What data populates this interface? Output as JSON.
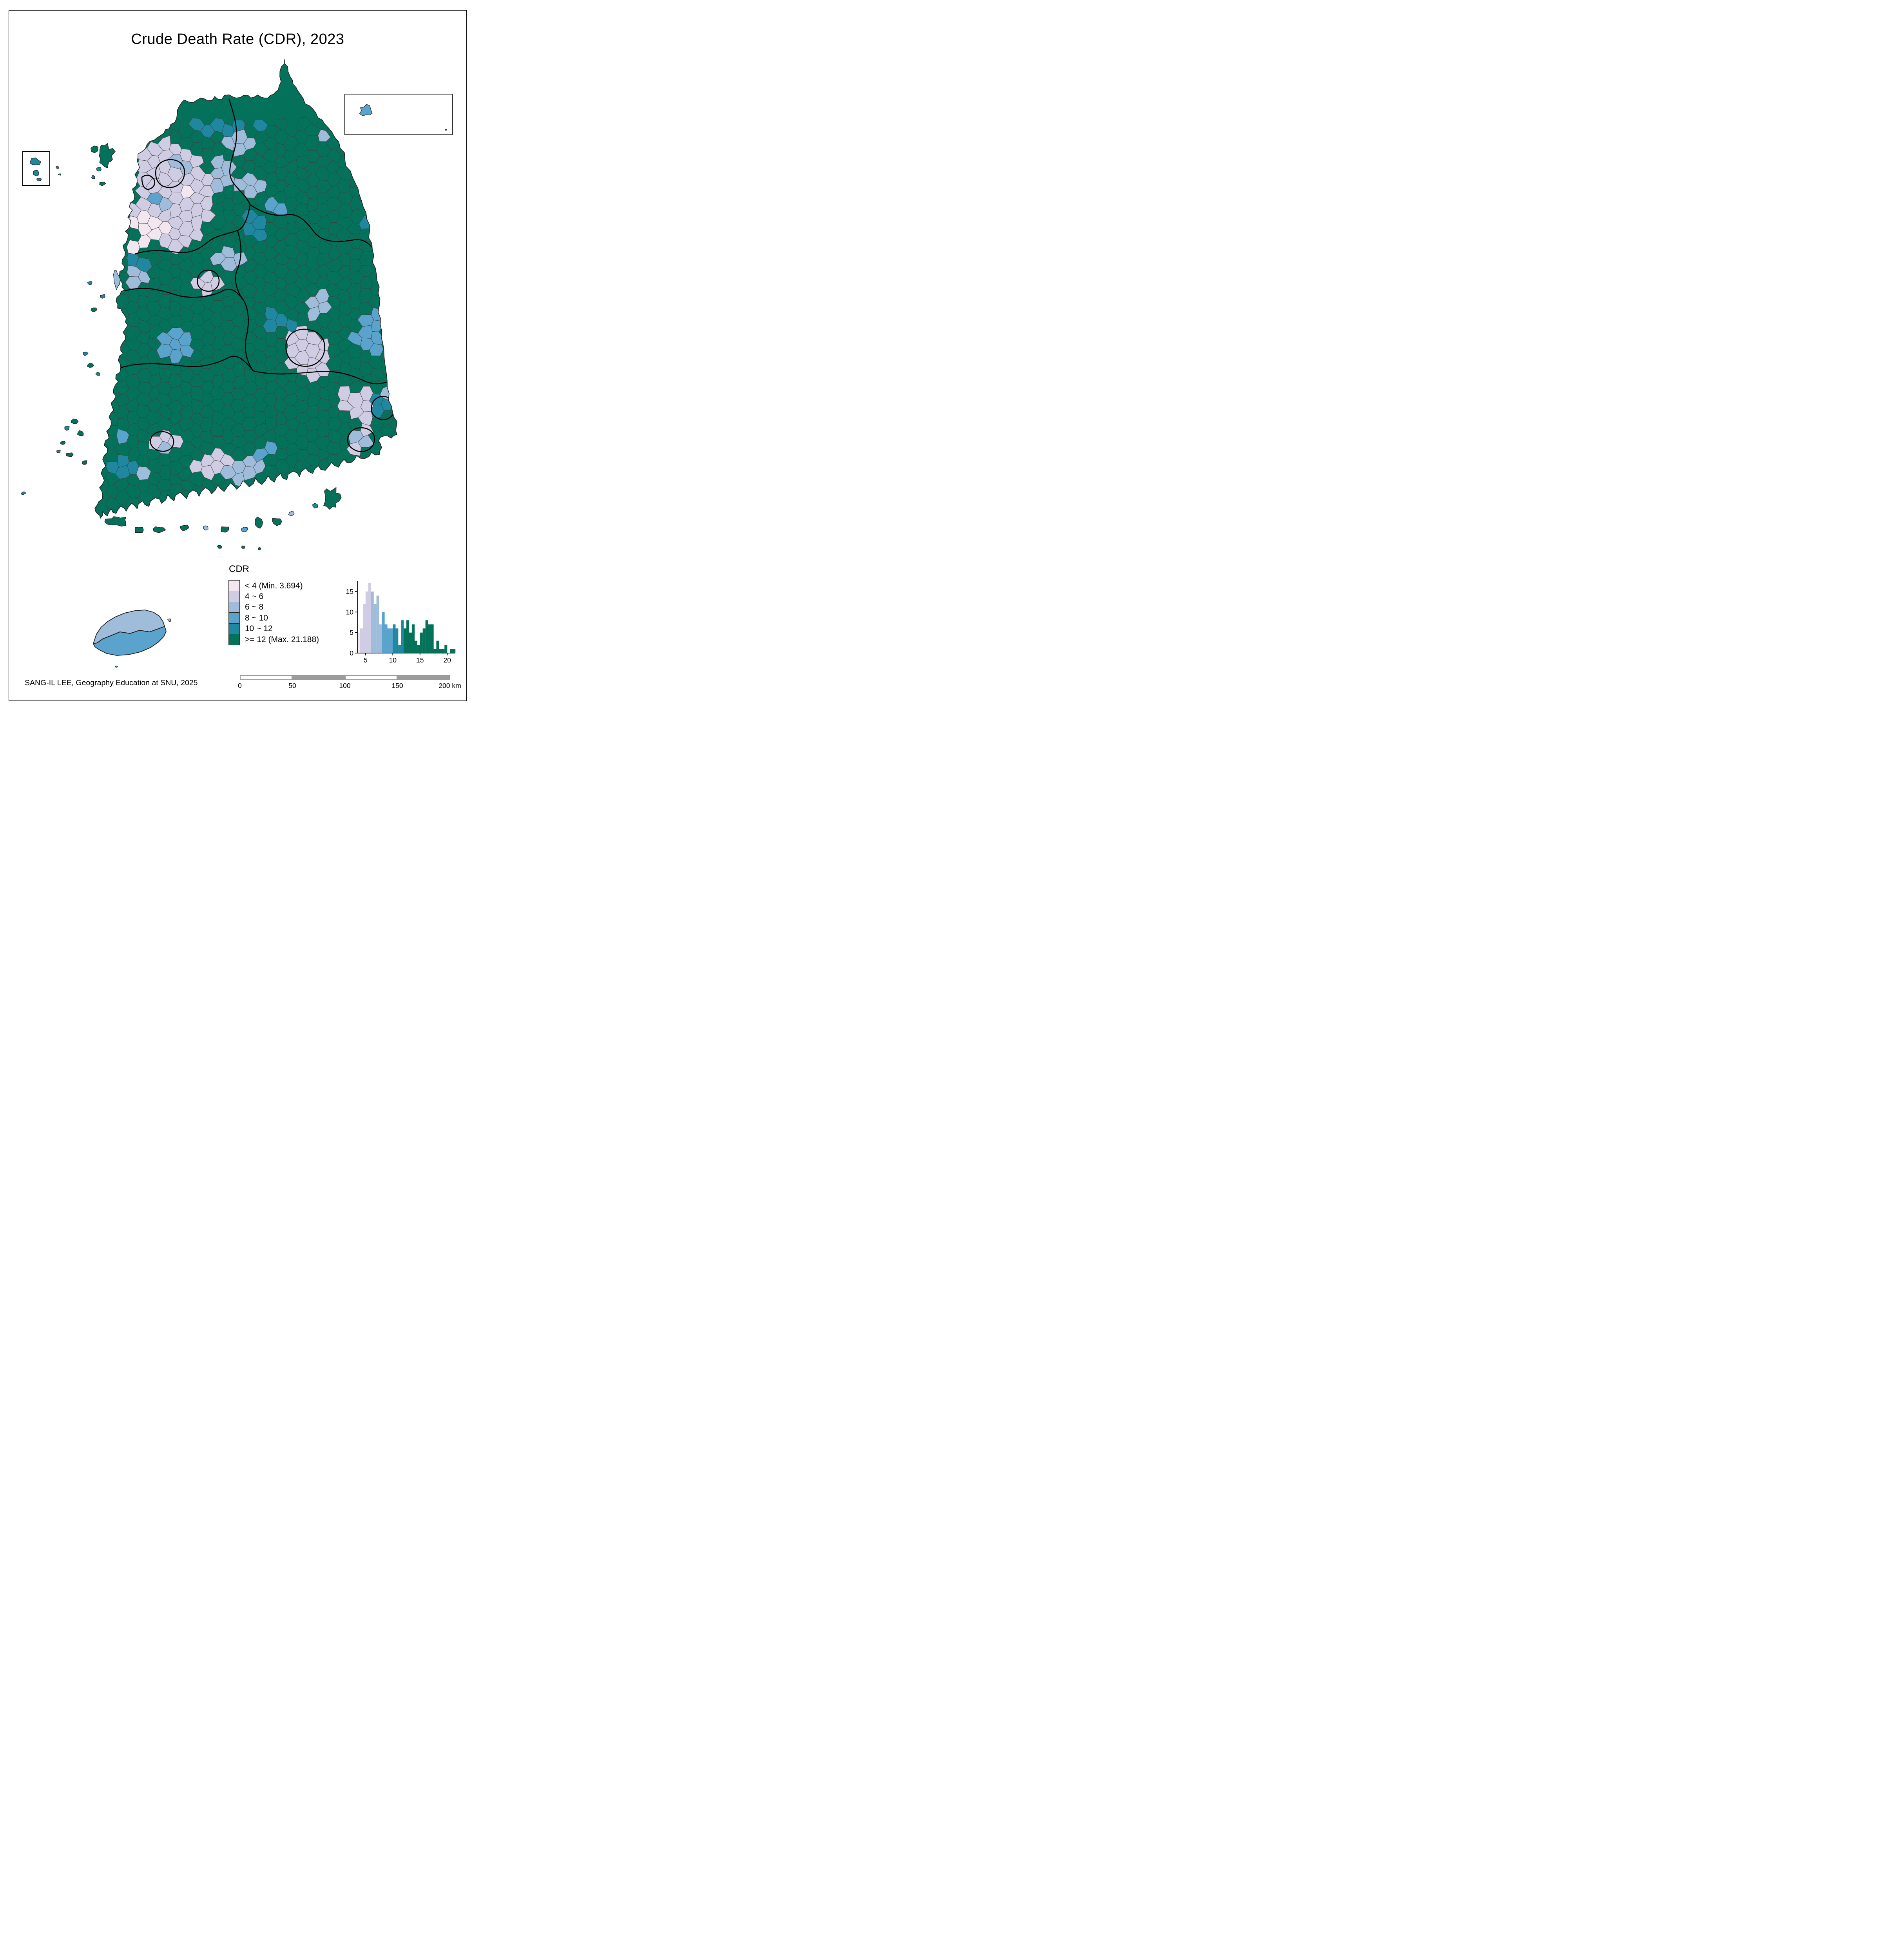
{
  "title": "Crude Death Rate (CDR), 2023",
  "attribution": "SANG-IL LEE, Geography Education at SNU, 2025",
  "legend": {
    "title": "CDR",
    "classes": [
      {
        "key": "c1",
        "label": "< 4 (Min. 3.694)",
        "color": "#f2e7f0"
      },
      {
        "key": "c2",
        "label": "4 ~ 6",
        "color": "#cfcce3"
      },
      {
        "key": "c3",
        "label": "6 ~ 8",
        "color": "#9fbcda"
      },
      {
        "key": "c4",
        "label": "8 ~ 10",
        "color": "#5aa3cd"
      },
      {
        "key": "c5",
        "label": "10 ~ 12",
        "color": "#1f87a0"
      },
      {
        "key": "c6",
        "label": ">= 12 (Max. 21.188)",
        "color": "#04725a"
      }
    ]
  },
  "scale_bar": {
    "tick_labels": [
      "0",
      "50",
      "100",
      "150",
      "200"
    ],
    "unit": "km",
    "max_km": 200
  },
  "chart_data": {
    "type": "bar",
    "title": "",
    "xlabel": "",
    "ylabel": "",
    "x_ticks": [
      5,
      10,
      15,
      20
    ],
    "y_ticks": [
      0,
      5,
      10,
      15
    ],
    "x_range": [
      3.5,
      21.5
    ],
    "y_range": [
      0,
      17.5
    ],
    "bin_start": 3.5,
    "bin_width": 0.5,
    "counts": [
      5,
      6,
      12,
      15,
      17,
      15,
      12,
      14,
      7,
      10,
      7,
      6,
      6,
      7,
      6,
      2,
      8,
      6,
      8,
      5,
      7,
      3,
      2,
      5,
      6,
      8,
      7,
      7,
      1,
      3,
      1,
      1,
      2,
      0,
      1,
      1
    ],
    "class_breaks": [
      4,
      6,
      8,
      10,
      12
    ],
    "grid": false,
    "legend_position": "none"
  },
  "map": {
    "default_class": "c6",
    "zones": [
      [
        "c2",
        410,
        330,
        38,
        50,
        "paju-gimpo"
      ],
      [
        "c1",
        468,
        498,
        20,
        15,
        "seoul-pale"
      ],
      [
        "c3",
        467,
        420,
        26,
        18,
        "seoul-north-blue"
      ],
      [
        "c4",
        389,
        516,
        13,
        20,
        "incheon"
      ],
      [
        "c3",
        420,
        522,
        14,
        13,
        "bucheon"
      ],
      [
        "c1",
        381,
        575,
        50,
        30,
        "hwaseong-pale"
      ],
      [
        "c1",
        350,
        622,
        26,
        16,
        "asan-coast-pale"
      ],
      [
        "c2",
        433,
        500,
        112,
        138,
        "seoul-metro-lavender"
      ],
      [
        "c3",
        620,
        282,
        45,
        22,
        "north-border-blue"
      ],
      [
        "c5",
        575,
        278,
        140,
        60,
        "dmz-teal-strip"
      ],
      [
        "c3",
        600,
        362,
        42,
        30,
        "chuncheon"
      ],
      [
        "c3",
        565,
        445,
        28,
        36,
        "gapyeong"
      ],
      [
        "c3",
        848,
        340,
        30,
        25,
        "inje"
      ],
      [
        "c2",
        883,
        385,
        32,
        26,
        "northeast-lavender"
      ],
      [
        "c3",
        897,
        294,
        30,
        26,
        "sokcho"
      ],
      [
        "c5",
        950,
        530,
        38,
        70,
        "east-coast-teal"
      ],
      [
        "c3",
        640,
        480,
        32,
        26,
        "hongcheon"
      ],
      [
        "c4",
        693,
        522,
        30,
        26,
        "wonju"
      ],
      [
        "c5",
        648,
        572,
        36,
        30,
        "chungju"
      ],
      [
        "c3",
        583,
        670,
        36,
        26,
        "cheongju"
      ],
      [
        "c1",
        520,
        698,
        11,
        10,
        "sejong-pale"
      ],
      [
        "c2",
        528,
        716,
        30,
        28,
        "daejeon"
      ],
      [
        "c3",
        352,
        712,
        36,
        28,
        "boryeong"
      ],
      [
        "c5",
        312,
        646,
        20,
        17,
        "seosan-teal"
      ],
      [
        "c5",
        340,
        674,
        28,
        20,
        "hongseong-teal"
      ],
      [
        "c2",
        472,
        845,
        14,
        12,
        "wanju-lavender"
      ],
      [
        "c4",
        440,
        880,
        46,
        36,
        "jeonju"
      ],
      [
        "c5",
        715,
        822,
        40,
        26,
        "gumi-teal"
      ],
      [
        "c3",
        808,
        775,
        34,
        28,
        "andong-blue"
      ],
      [
        "c4",
        955,
        850,
        50,
        55,
        "pohang"
      ],
      [
        "c5",
        1000,
        940,
        26,
        30,
        "east-coast-south-teal"
      ],
      [
        "c5",
        800,
        932,
        7,
        6,
        "daegu-teal-dot"
      ],
      [
        "c1",
        790,
        915,
        16,
        13,
        "daegu-pale"
      ],
      [
        "c2",
        785,
        905,
        55,
        62,
        "daegu-cluster"
      ],
      [
        "c5",
        975,
        1040,
        30,
        28,
        "ulsan"
      ],
      [
        "c3",
        1002,
        1002,
        20,
        18,
        "ulsan-north-blue"
      ],
      [
        "c2",
        930,
        1032,
        72,
        46,
        "gyeongju-miryang-lavender"
      ],
      [
        "c1",
        898,
        1105,
        8,
        7,
        "busan-pale-dot"
      ],
      [
        "c5",
        944,
        1136,
        11,
        9,
        "busan-teal-dot"
      ],
      [
        "c3",
        918,
        1122,
        22,
        16,
        "busan-blue"
      ],
      [
        "c2",
        920,
        1125,
        40,
        30,
        "busan-cluster"
      ],
      [
        "c1",
        405,
        1118,
        11,
        9,
        "gwangju-pale-dot"
      ],
      [
        "c3",
        427,
        1140,
        10,
        8,
        "gwangju-blue-dot"
      ],
      [
        "c2",
        412,
        1128,
        38,
        28,
        "gwangju-cluster"
      ],
      [
        "c4",
        300,
        1112,
        20,
        16,
        "mokpo"
      ],
      [
        "c5",
        322,
        1192,
        38,
        30,
        "southwest-teal"
      ],
      [
        "c3",
        362,
        1218,
        22,
        18,
        "southwest-blue"
      ],
      [
        "c2",
        545,
        1182,
        52,
        34,
        "suncheon-lavender"
      ],
      [
        "c3",
        622,
        1195,
        46,
        34,
        "jinju-blue"
      ],
      [
        "c4",
        680,
        1148,
        24,
        20,
        "uiryeong-blue"
      ]
    ],
    "islands": [
      [
        "c6",
        270,
        398,
        20,
        26
      ],
      [
        "c6",
        243,
        382,
        10,
        8
      ],
      [
        "c5",
        252,
        432,
        6,
        5
      ],
      [
        "c5",
        238,
        452,
        5,
        4
      ],
      [
        "c6",
        262,
        468,
        7,
        5
      ],
      [
        "c3",
        297,
        712,
        8,
        22
      ],
      [
        "c5",
        262,
        756,
        6,
        5
      ],
      [
        "c6",
        240,
        790,
        7,
        5
      ],
      [
        "c5",
        230,
        722,
        6,
        4
      ],
      [
        "c5",
        218,
        902,
        6,
        5
      ],
      [
        "c6",
        230,
        932,
        8,
        6
      ],
      [
        "c5",
        250,
        954,
        6,
        4
      ],
      [
        "c6",
        190,
        1075,
        8,
        6
      ],
      [
        "c5",
        172,
        1092,
        6,
        5
      ],
      [
        "c6",
        205,
        1105,
        9,
        7
      ],
      [
        "c6",
        160,
        1130,
        7,
        5
      ],
      [
        "c5",
        150,
        1152,
        5,
        4
      ],
      [
        "c6",
        178,
        1160,
        8,
        6
      ],
      [
        "c6",
        216,
        1180,
        7,
        5
      ],
      [
        "c5",
        60,
        1258,
        5,
        4
      ],
      [
        "c6",
        300,
        1330,
        26,
        13
      ],
      [
        "c6",
        355,
        1352,
        12,
        8
      ],
      [
        "c6",
        405,
        1352,
        14,
        9
      ],
      [
        "c6",
        470,
        1346,
        10,
        7
      ],
      [
        "c3",
        525,
        1346,
        8,
        6
      ],
      [
        "c6",
        575,
        1350,
        12,
        8
      ],
      [
        "c4",
        625,
        1352,
        8,
        6
      ],
      [
        "c6",
        660,
        1332,
        10,
        14
      ],
      [
        "c6",
        706,
        1330,
        12,
        9
      ],
      [
        "c3",
        745,
        1310,
        8,
        6
      ],
      [
        "c6",
        845,
        1270,
        20,
        24
      ],
      [
        "c5",
        805,
        1290,
        7,
        5
      ],
      [
        "c6",
        620,
        1396,
        5,
        3
      ],
      [
        "c6",
        662,
        1400,
        4,
        3
      ],
      [
        "c6",
        560,
        1395,
        6,
        4
      ],
      [
        "c3",
        432,
        1582,
        4,
        4
      ],
      [
        "c4",
        297,
        1701,
        3,
        2
      ],
      [
        "c5",
        88,
        413,
        13,
        9
      ],
      [
        "c5",
        92,
        441,
        7,
        8
      ],
      [
        "c5",
        100,
        458,
        6,
        3
      ],
      [
        "c5",
        147,
        427,
        4,
        3
      ],
      [
        "c5",
        152,
        445,
        3,
        2
      ],
      [
        "c4",
        935,
        282,
        16,
        13
      ],
      [
        "c5",
        1138,
        331,
        3,
        2
      ]
    ],
    "jeju": {
      "north_class": "c3",
      "south_class": "c4"
    },
    "insets": {
      "left": {
        "content": "west-sea-islands",
        "islands_class": "c5"
      },
      "right": {
        "content": "ulleungdo-dokdo",
        "ulleungdo_class": "c4",
        "dokdo_class": "c5"
      }
    }
  }
}
